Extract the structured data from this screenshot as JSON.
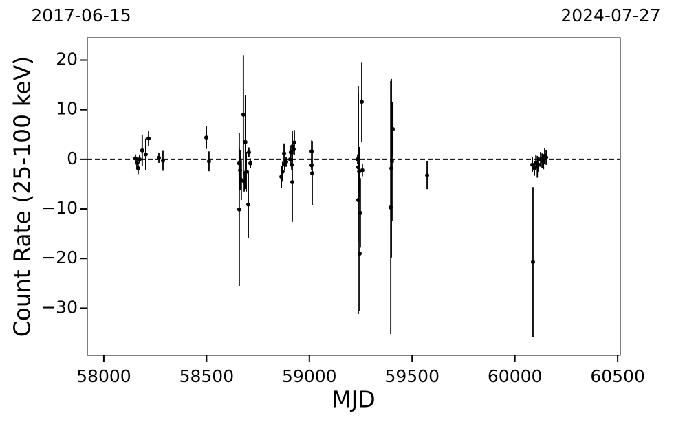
{
  "chart_data": {
    "type": "errorbar",
    "date_start": "2017-06-15",
    "date_end": "2024-07-27",
    "x_label": "MJD",
    "y_label": "Count Rate (25-100 keV)",
    "xlim": [
      57920,
      60513
    ],
    "ylim": [
      -39.5,
      24.5
    ],
    "xticks": [
      58000,
      58500,
      59000,
      59500,
      60000,
      60500
    ],
    "yticks": [
      {
        "value": -30,
        "label": "−30"
      },
      {
        "value": -20,
        "label": "−20"
      },
      {
        "value": -10,
        "label": "−10"
      },
      0,
      10,
      20
    ],
    "reference_line": 0,
    "series": [
      {
        "color": "#000000",
        "x": [
          58154,
          58161,
          58167,
          58174,
          58187,
          58204,
          58218,
          58268,
          58288,
          58499,
          58512,
          58659,
          58659,
          58663,
          58669,
          58679,
          58683,
          58689,
          58693,
          58703,
          58706,
          58713,
          58864,
          58870,
          58877,
          58880,
          58887,
          58907,
          58910,
          58914,
          58917,
          58917,
          58924,
          58927,
          59011,
          59011,
          59014,
          59235,
          59238,
          59238,
          59242,
          59245,
          59248,
          59255,
          59258,
          59396,
          59399,
          59402,
          59406,
          59573,
          60085,
          60088,
          60095,
          60102,
          60109,
          60115,
          60125,
          60132,
          60139,
          60145,
          60152
        ],
        "values": [
          0.2,
          -0.7,
          -1.8,
          0,
          1.8,
          1,
          4.2,
          0.3,
          -0.3,
          4.4,
          -0.4,
          -0.8,
          -10.1,
          -2.2,
          -4.2,
          9,
          -4.5,
          3.5,
          -2.5,
          -9.1,
          1.4,
          -0.8,
          -3.5,
          -2.5,
          1.2,
          -1.1,
          -0.5,
          0,
          1.4,
          -1.1,
          2.6,
          -4.6,
          2,
          3.4,
          1.6,
          -1.2,
          -2.8,
          0,
          -1.6,
          -8.2,
          -2.5,
          -19,
          -10.8,
          11.6,
          -2.2,
          -9.7,
          -1.8,
          -0.4,
          6.1,
          -3.2,
          -1.1,
          -20.7,
          -1.8,
          -0.7,
          -1.5,
          -1.1,
          0,
          -0.3,
          -0.5,
          0.7,
          0.4
        ],
        "errors": [
          0.8,
          1,
          1.2,
          0.8,
          3.2,
          3.2,
          1.5,
          1,
          2,
          2.3,
          2,
          3,
          15.4,
          4,
          4,
          12,
          2,
          9.5,
          4,
          6.8,
          1,
          1,
          2.2,
          2,
          2,
          1,
          1,
          1,
          1,
          1,
          3.2,
          8,
          1,
          2.5,
          2.2,
          1,
          6.5,
          1,
          15,
          23,
          5,
          11.5,
          7,
          8,
          1.2,
          25.5,
          18,
          12,
          5.5,
          2.8,
          1.5,
          15.1,
          1.5,
          1.5,
          2.2,
          1.5,
          1.5,
          1.5,
          1.5,
          1.5,
          1.5
        ]
      }
    ]
  }
}
